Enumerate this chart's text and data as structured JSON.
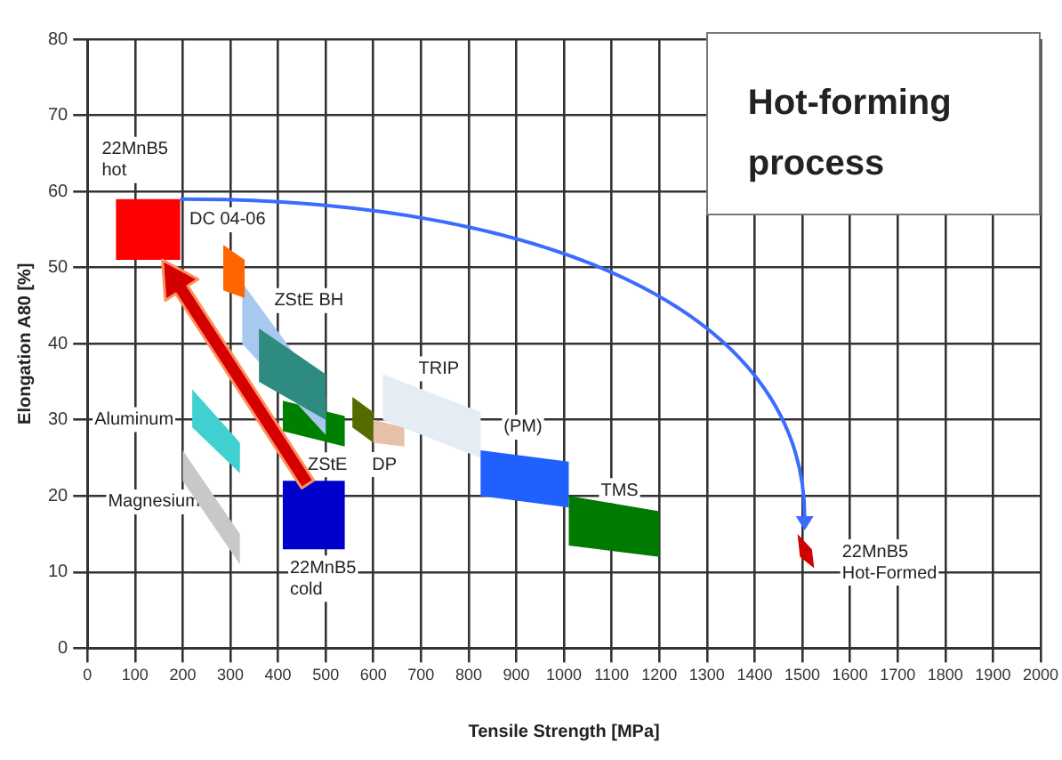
{
  "chart_data": {
    "type": "area",
    "title": "Hot-forming process",
    "xlabel": "Tensile Strength [MPa]",
    "ylabel": "Elongation A80 [%]",
    "xlim": [
      0,
      2000
    ],
    "xticks": [
      0,
      100,
      200,
      300,
      400,
      500,
      600,
      700,
      800,
      900,
      1000,
      1100,
      1200,
      1300,
      1400,
      1500,
      1600,
      1700,
      1800,
      1900,
      2000
    ],
    "ylim": [
      0,
      80
    ],
    "yticks": [
      0,
      10,
      20,
      30,
      40,
      50,
      60,
      70,
      80
    ],
    "grid": true,
    "legend": false,
    "marker": "none",
    "series": [
      {
        "name": "Magnesium",
        "color": "#c8c8c8",
        "x": [
          200,
          320,
          320,
          200,
          200
        ],
        "values": [
          26,
          15,
          11,
          22,
          26
        ]
      },
      {
        "name": "Aluminum",
        "color": "#40d0d0",
        "x": [
          220,
          320,
          320,
          220,
          220
        ],
        "values": [
          34,
          27,
          23,
          29,
          34
        ]
      },
      {
        "name": "ZStE",
        "color": "#008000",
        "x": [
          410,
          540,
          540,
          410,
          410
        ],
        "values": [
          32.5,
          30.5,
          26.5,
          28.5,
          32.5
        ]
      },
      {
        "name": "ZStE BH",
        "color": "#a8c8f0",
        "x": [
          325,
          500,
          500,
          325,
          325
        ],
        "values": [
          48,
          33,
          28,
          40,
          48
        ]
      },
      {
        "color": "#2e8b80",
        "x": [
          360,
          500,
          500,
          360,
          360
        ],
        "values": [
          42,
          36,
          30,
          35,
          42
        ]
      },
      {
        "name": "DP",
        "color": "#556b00",
        "x": [
          556,
          600,
          600,
          556,
          556
        ],
        "values": [
          33,
          31,
          27,
          29,
          33
        ]
      },
      {
        "color": "#e8c0a8",
        "x": [
          600,
          665,
          665,
          600,
          600
        ],
        "values": [
          30,
          29,
          26.5,
          27,
          30
        ]
      },
      {
        "name": "TRIP",
        "color": "#e4ecf4",
        "x": [
          620,
          825,
          825,
          620,
          620
        ],
        "values": [
          36,
          31,
          25,
          30,
          36
        ]
      },
      {
        "name": "(PM)",
        "color": "#2060ff",
        "x": [
          825,
          1010,
          1010,
          825,
          825
        ],
        "values": [
          26,
          24.5,
          18.5,
          20,
          26
        ]
      },
      {
        "name": "TMS",
        "color": "#007a00",
        "x": [
          1010,
          1200,
          1200,
          1010,
          1010
        ],
        "values": [
          20,
          18,
          12,
          13.5,
          20
        ]
      },
      {
        "name": "DC 04-06",
        "color": "#ff6600",
        "x": [
          285,
          330,
          330,
          285,
          285
        ],
        "values": [
          53,
          51,
          46,
          47,
          53
        ]
      },
      {
        "name": "22MnB5\ncold",
        "color": "#0000cc",
        "x": [
          410,
          540,
          540,
          410,
          410
        ],
        "values": [
          22,
          22,
          13,
          13,
          22
        ]
      },
      {
        "name": "22MnB5\nhot",
        "color": "#ff0000",
        "x": [
          60,
          195,
          195,
          60,
          60
        ],
        "values": [
          59,
          59,
          51,
          51,
          59
        ]
      },
      {
        "name": "22MnB5\nHot-Formed",
        "color": "#d00000",
        "x": [
          1490,
          1520,
          1525,
          1495,
          1490
        ],
        "values": [
          15,
          13,
          10.5,
          12,
          15
        ]
      }
    ]
  }
}
